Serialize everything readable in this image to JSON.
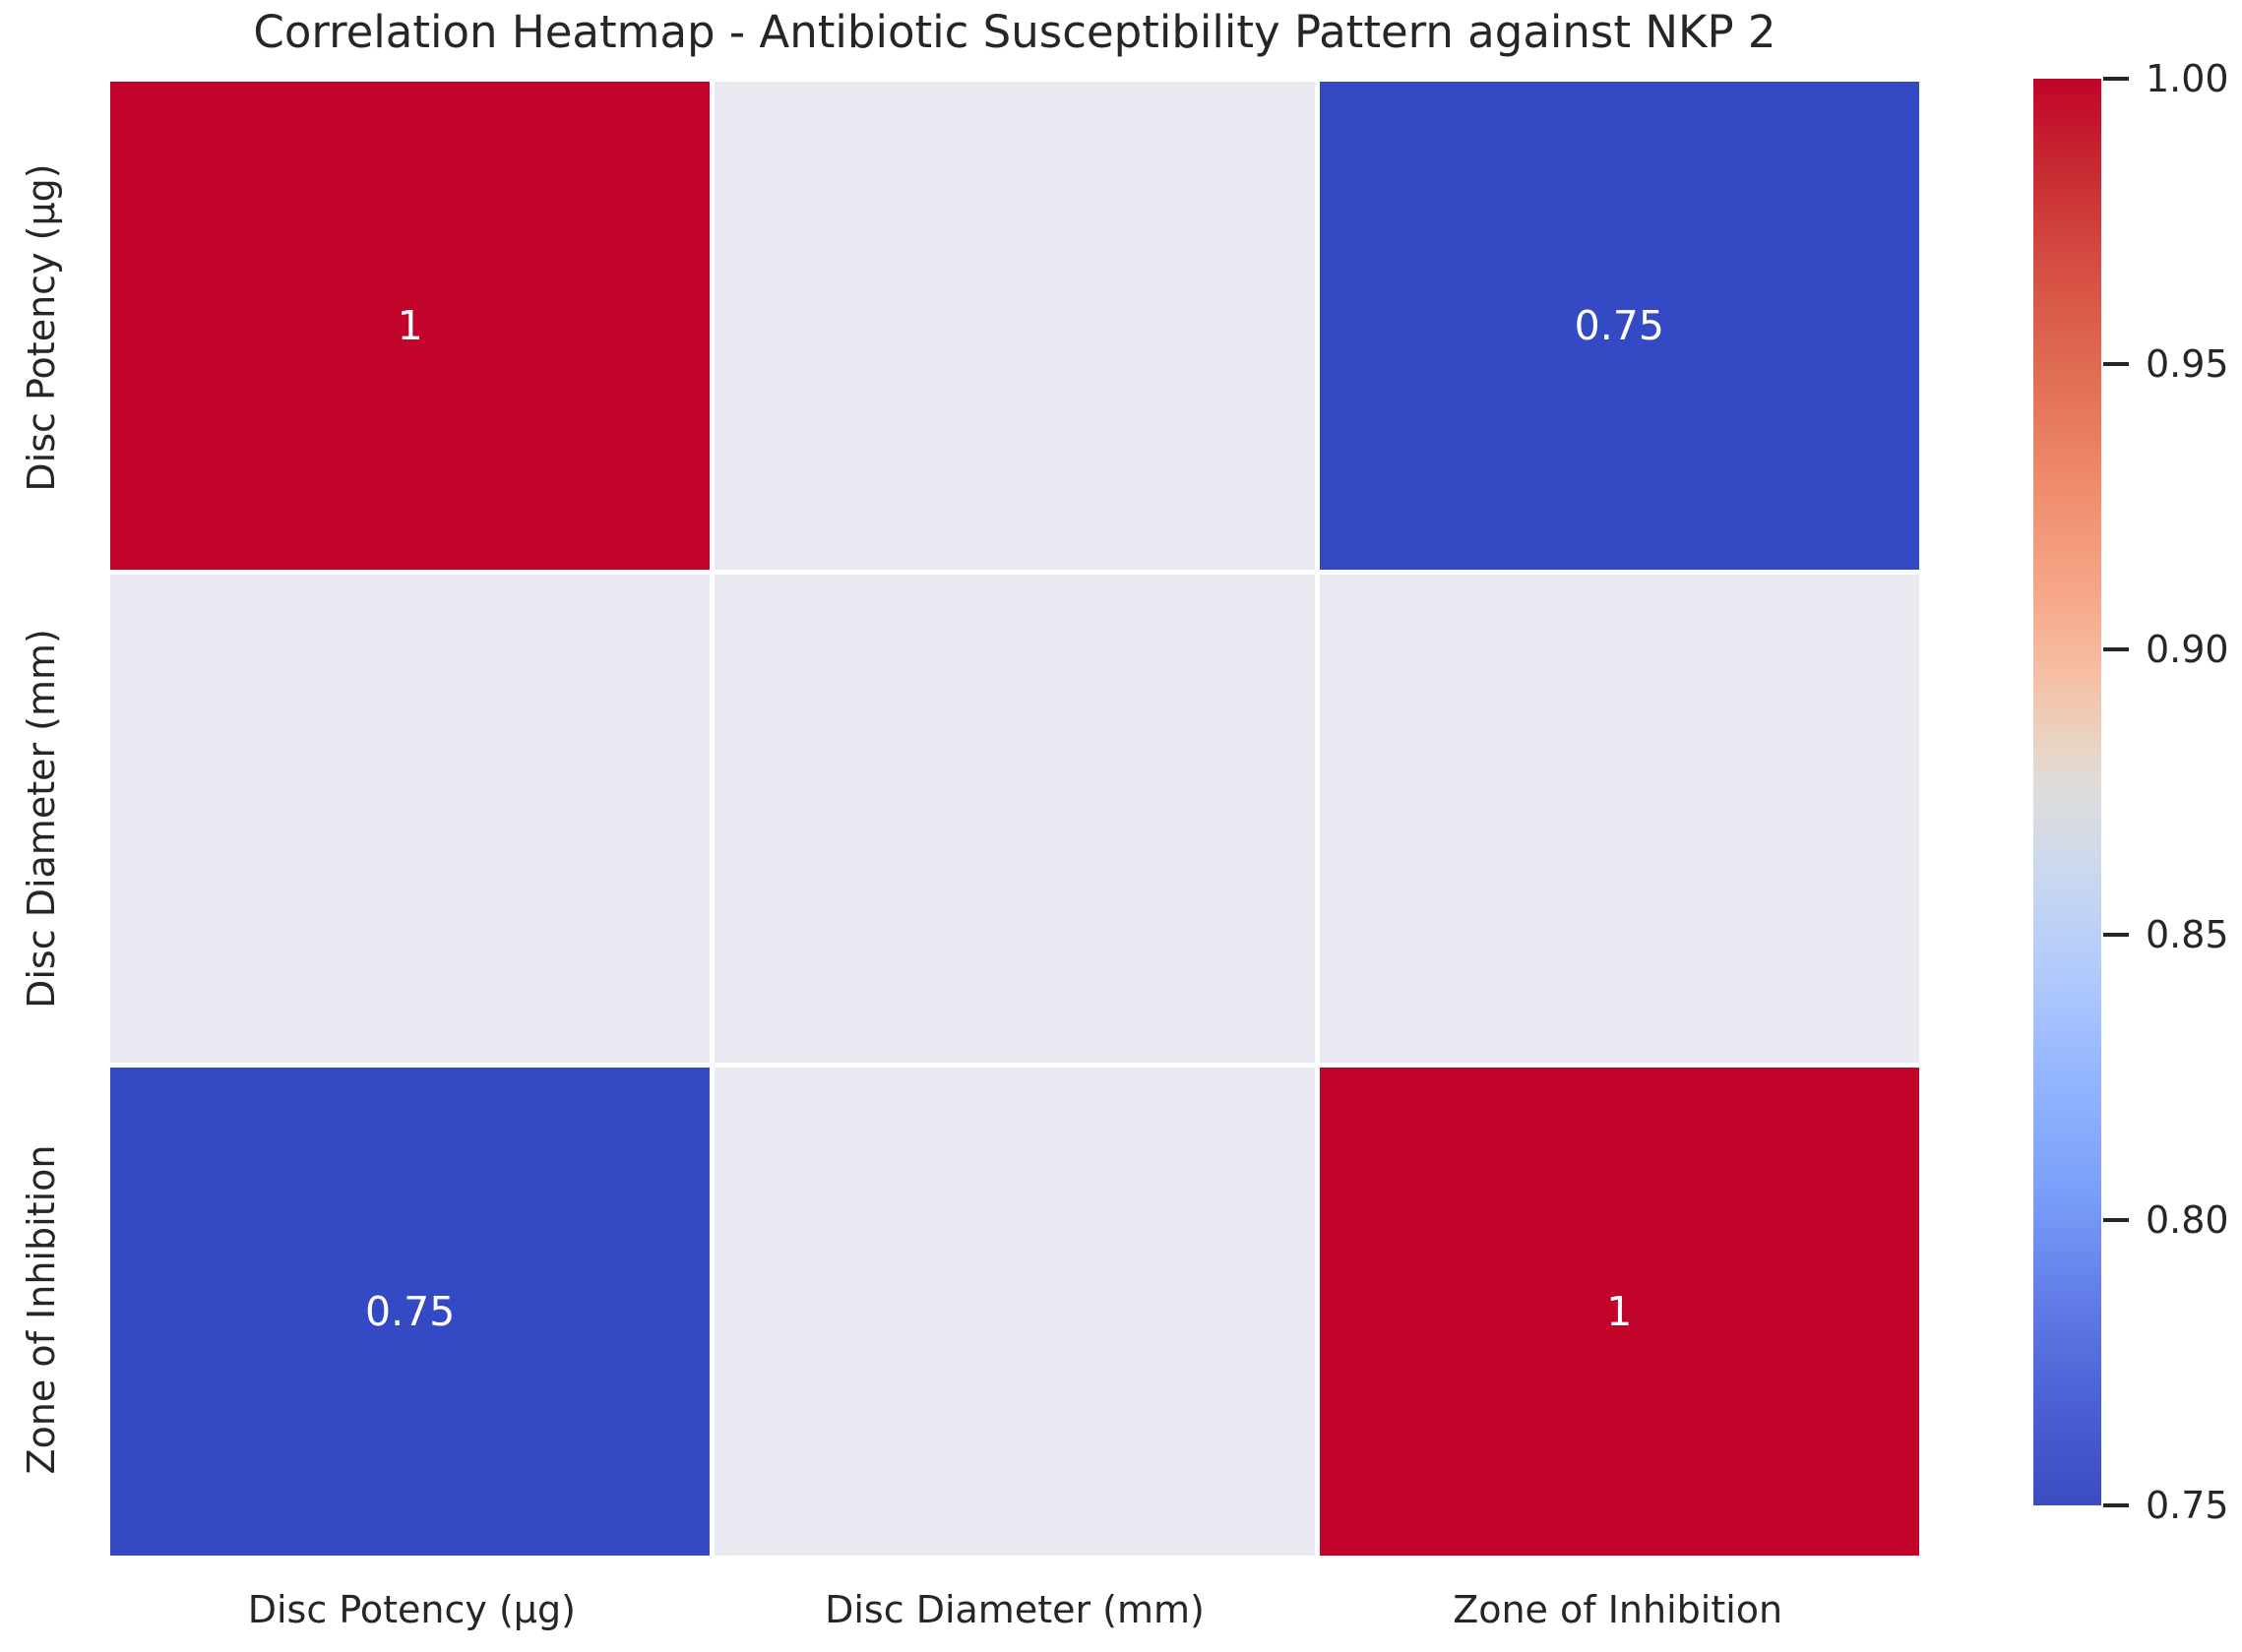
{
  "chart_data": {
    "type": "heatmap",
    "title": "Correlation Heatmap - Antibiotic Susceptibility Pattern against NKP 2",
    "categories": [
      "Disc Potency (µg)",
      "Disc Diameter (mm)",
      "Zone of Inhibition"
    ],
    "matrix": [
      [
        1,
        null,
        0.75
      ],
      [
        null,
        null,
        null
      ],
      [
        0.75,
        null,
        1
      ]
    ],
    "cell_labels": [
      [
        "1",
        "",
        "0.75"
      ],
      [
        "",
        "",
        ""
      ],
      [
        "0.75",
        "",
        "1"
      ]
    ],
    "colormap": "coolwarm",
    "colorbar_range": [
      0.75,
      1.0
    ],
    "colorbar_ticks": [
      "1.00",
      "0.95",
      "0.90",
      "0.85",
      "0.80",
      "0.75"
    ],
    "legend_position": "right",
    "grid": false,
    "colors": {
      "value_max_red": "#c2042a",
      "value_min_blue": "#3449c4",
      "nan_cell_gray": "#e9eaf1",
      "grid_line": "#ffffff",
      "annotation_text": "#ffffff",
      "axis_text": "#262626"
    }
  }
}
